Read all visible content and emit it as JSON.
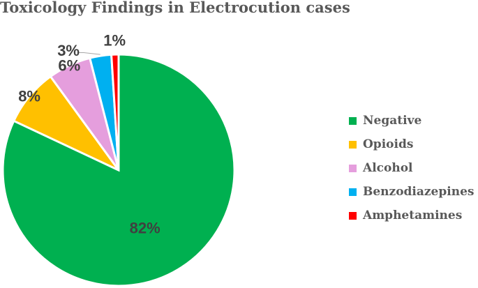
{
  "chart_data": {
    "type": "pie",
    "title": "Toxicology Findings in Electrocution cases",
    "categories": [
      "Negative",
      "Opioids",
      "Alcohol",
      "Benzodiazepines",
      "Amphetamines"
    ],
    "values": [
      82,
      8,
      6,
      3,
      1
    ],
    "data_labels": [
      "82%",
      "8%",
      "6%",
      "3%",
      "1%"
    ],
    "colors": [
      "#00B050",
      "#FFC000",
      "#E59EDD",
      "#00B0F0",
      "#FF0000"
    ],
    "start_angle": "12 o'clock",
    "direction": "clockwise",
    "legend_position": "right"
  }
}
